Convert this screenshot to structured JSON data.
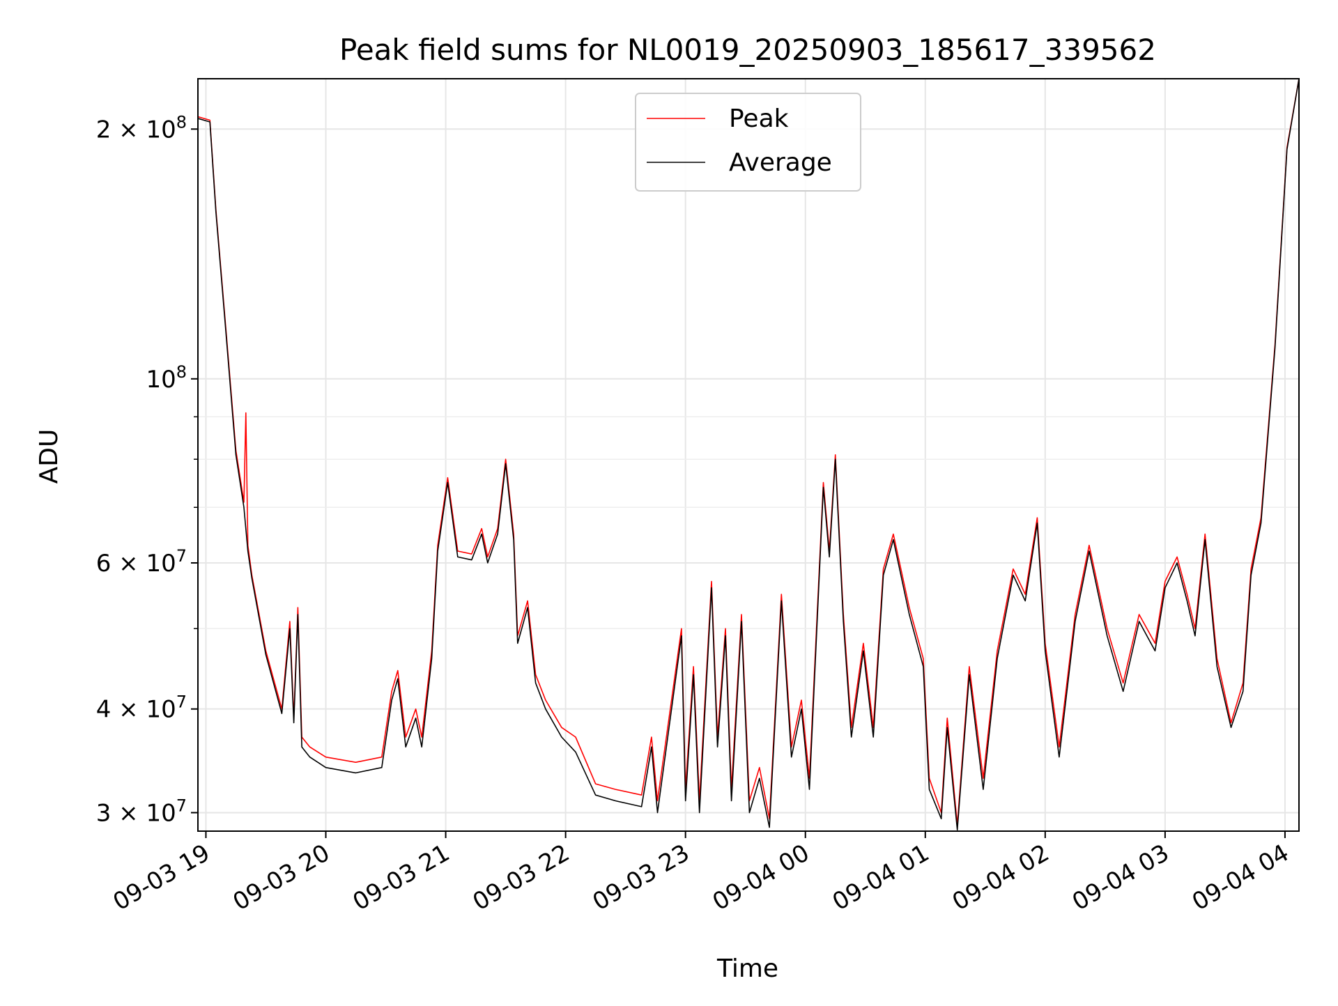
{
  "chart_data": {
    "type": "line",
    "title": "Peak field sums for NL0019_20250903_185617_339562",
    "xlabel": "Time",
    "ylabel": "ADU",
    "yscale": "log",
    "ylim": [
      28500000,
      230000000
    ],
    "xlim": [
      "2025-09-03 18:56",
      "2025-09-04 04:07"
    ],
    "grid": true,
    "legend_position": "top-center",
    "x_ticks": [
      {
        "t": "2025-09-03 19:00",
        "label": "09-03 19"
      },
      {
        "t": "2025-09-03 20:00",
        "label": "09-03 20"
      },
      {
        "t": "2025-09-03 21:00",
        "label": "09-03 21"
      },
      {
        "t": "2025-09-03 22:00",
        "label": "09-03 22"
      },
      {
        "t": "2025-09-03 23:00",
        "label": "09-03 23"
      },
      {
        "t": "2025-09-04 00:00",
        "label": "09-04 00"
      },
      {
        "t": "2025-09-04 01:00",
        "label": "09-04 01"
      },
      {
        "t": "2025-09-04 02:00",
        "label": "09-04 02"
      },
      {
        "t": "2025-09-04 03:00",
        "label": "09-04 03"
      },
      {
        "t": "2025-09-04 04:00",
        "label": "09-04 04"
      }
    ],
    "y_ticks": [
      {
        "value": 30000000,
        "mant": "3",
        "exp": "7"
      },
      {
        "value": 40000000,
        "mant": "4",
        "exp": "7"
      },
      {
        "value": 60000000,
        "mant": "6",
        "exp": "7"
      },
      {
        "value": 100000000,
        "mant": "",
        "exp": "8"
      },
      {
        "value": 200000000,
        "mant": "2",
        "exp": "8"
      }
    ],
    "y_minor": [
      50000000,
      70000000,
      80000000,
      90000000
    ],
    "series": [
      {
        "name": "Peak",
        "color": "#ff0000",
        "points": [
          [
            "2025-09-03 18:56",
            207000000
          ],
          [
            "2025-09-03 19:02",
            205000000
          ],
          [
            "2025-09-03 19:05",
            160000000
          ],
          [
            "2025-09-03 19:10",
            115000000
          ],
          [
            "2025-09-03 19:15",
            82000000
          ],
          [
            "2025-09-03 19:19",
            71000000
          ],
          [
            "2025-09-03 19:20",
            91000000
          ],
          [
            "2025-09-03 19:21",
            63000000
          ],
          [
            "2025-09-03 19:23",
            58000000
          ],
          [
            "2025-09-03 19:30",
            47000000
          ],
          [
            "2025-09-03 19:38",
            40000000
          ],
          [
            "2025-09-03 19:42",
            51000000
          ],
          [
            "2025-09-03 19:44",
            39000000
          ],
          [
            "2025-09-03 19:46",
            53000000
          ],
          [
            "2025-09-03 19:48",
            37000000
          ],
          [
            "2025-09-03 19:52",
            36000000
          ],
          [
            "2025-09-03 20:00",
            35000000
          ],
          [
            "2025-09-03 20:15",
            34500000
          ],
          [
            "2025-09-03 20:28",
            35000000
          ],
          [
            "2025-09-03 20:33",
            42000000
          ],
          [
            "2025-09-03 20:36",
            44500000
          ],
          [
            "2025-09-03 20:40",
            37000000
          ],
          [
            "2025-09-03 20:45",
            40000000
          ],
          [
            "2025-09-03 20:48",
            37000000
          ],
          [
            "2025-09-03 20:53",
            47000000
          ],
          [
            "2025-09-03 20:56",
            63000000
          ],
          [
            "2025-09-03 21:01",
            76000000
          ],
          [
            "2025-09-03 21:06",
            62000000
          ],
          [
            "2025-09-03 21:13",
            61500000
          ],
          [
            "2025-09-03 21:18",
            66000000
          ],
          [
            "2025-09-03 21:21",
            61000000
          ],
          [
            "2025-09-03 21:26",
            66000000
          ],
          [
            "2025-09-03 21:30",
            80000000
          ],
          [
            "2025-09-03 21:34",
            65000000
          ],
          [
            "2025-09-03 21:36",
            49000000
          ],
          [
            "2025-09-03 21:41",
            54000000
          ],
          [
            "2025-09-03 21:45",
            44000000
          ],
          [
            "2025-09-03 21:50",
            41000000
          ],
          [
            "2025-09-03 21:58",
            38000000
          ],
          [
            "2025-09-03 22:05",
            37000000
          ],
          [
            "2025-09-03 22:15",
            32500000
          ],
          [
            "2025-09-03 22:25",
            32000000
          ],
          [
            "2025-09-03 22:38",
            31500000
          ],
          [
            "2025-09-03 22:43",
            37000000
          ],
          [
            "2025-09-03 22:46",
            31000000
          ],
          [
            "2025-09-03 22:58",
            50000000
          ],
          [
            "2025-09-03 23:00",
            32000000
          ],
          [
            "2025-09-03 23:04",
            45000000
          ],
          [
            "2025-09-03 23:07",
            31000000
          ],
          [
            "2025-09-03 23:13",
            57000000
          ],
          [
            "2025-09-03 23:16",
            37000000
          ],
          [
            "2025-09-03 23:20",
            50000000
          ],
          [
            "2025-09-03 23:23",
            32000000
          ],
          [
            "2025-09-03 23:28",
            52000000
          ],
          [
            "2025-09-03 23:32",
            31000000
          ],
          [
            "2025-09-03 23:37",
            34000000
          ],
          [
            "2025-09-03 23:42",
            29500000
          ],
          [
            "2025-09-03 23:48",
            55000000
          ],
          [
            "2025-09-03 23:53",
            36000000
          ],
          [
            "2025-09-03 23:58",
            41000000
          ],
          [
            "2025-09-04 00:02",
            33000000
          ],
          [
            "2025-09-04 00:09",
            75000000
          ],
          [
            "2025-09-04 00:12",
            62000000
          ],
          [
            "2025-09-04 00:15",
            81000000
          ],
          [
            "2025-09-04 00:19",
            52000000
          ],
          [
            "2025-09-04 00:23",
            38000000
          ],
          [
            "2025-09-04 00:29",
            48000000
          ],
          [
            "2025-09-04 00:34",
            38000000
          ],
          [
            "2025-09-04 00:39",
            59000000
          ],
          [
            "2025-09-04 00:44",
            65000000
          ],
          [
            "2025-09-04 00:52",
            53000000
          ],
          [
            "2025-09-04 00:59",
            46000000
          ],
          [
            "2025-09-04 01:02",
            33000000
          ],
          [
            "2025-09-04 01:08",
            30000000
          ],
          [
            "2025-09-04 01:11",
            39000000
          ],
          [
            "2025-09-04 01:16",
            29000000
          ],
          [
            "2025-09-04 01:22",
            45000000
          ],
          [
            "2025-09-04 01:29",
            33000000
          ],
          [
            "2025-09-04 01:36",
            47000000
          ],
          [
            "2025-09-04 01:44",
            59000000
          ],
          [
            "2025-09-04 01:50",
            55000000
          ],
          [
            "2025-09-04 01:56",
            68000000
          ],
          [
            "2025-09-04 02:00",
            48000000
          ],
          [
            "2025-09-04 02:07",
            36000000
          ],
          [
            "2025-09-04 02:15",
            52000000
          ],
          [
            "2025-09-04 02:22",
            63000000
          ],
          [
            "2025-09-04 02:31",
            50000000
          ],
          [
            "2025-09-04 02:39",
            43000000
          ],
          [
            "2025-09-04 02:47",
            52000000
          ],
          [
            "2025-09-04 02:55",
            48000000
          ],
          [
            "2025-09-04 03:00",
            57000000
          ],
          [
            "2025-09-04 03:06",
            61000000
          ],
          [
            "2025-09-04 03:11",
            55000000
          ],
          [
            "2025-09-04 03:15",
            50000000
          ],
          [
            "2025-09-04 03:20",
            65000000
          ],
          [
            "2025-09-04 03:26",
            46000000
          ],
          [
            "2025-09-04 03:33",
            38500000
          ],
          [
            "2025-09-04 03:39",
            43000000
          ],
          [
            "2025-09-04 03:43",
            59000000
          ],
          [
            "2025-09-04 03:48",
            68000000
          ],
          [
            "2025-09-04 03:55",
            110000000
          ],
          [
            "2025-09-04 04:01",
            190000000
          ],
          [
            "2025-09-04 04:07",
            230000000
          ]
        ]
      },
      {
        "name": "Average",
        "color": "#000000",
        "points": [
          [
            "2025-09-03 18:56",
            206000000
          ],
          [
            "2025-09-03 19:02",
            204000000
          ],
          [
            "2025-09-03 19:05",
            159000000
          ],
          [
            "2025-09-03 19:10",
            114000000
          ],
          [
            "2025-09-03 19:15",
            81000000
          ],
          [
            "2025-09-03 19:19",
            70000000
          ],
          [
            "2025-09-03 19:21",
            62000000
          ],
          [
            "2025-09-03 19:23",
            57500000
          ],
          [
            "2025-09-03 19:30",
            46500000
          ],
          [
            "2025-09-03 19:38",
            39500000
          ],
          [
            "2025-09-03 19:42",
            50000000
          ],
          [
            "2025-09-03 19:44",
            38500000
          ],
          [
            "2025-09-03 19:46",
            52000000
          ],
          [
            "2025-09-03 19:48",
            36000000
          ],
          [
            "2025-09-03 19:52",
            35000000
          ],
          [
            "2025-09-03 20:00",
            34000000
          ],
          [
            "2025-09-03 20:15",
            33500000
          ],
          [
            "2025-09-03 20:28",
            34000000
          ],
          [
            "2025-09-03 20:33",
            41000000
          ],
          [
            "2025-09-03 20:36",
            43500000
          ],
          [
            "2025-09-03 20:40",
            36000000
          ],
          [
            "2025-09-03 20:45",
            39000000
          ],
          [
            "2025-09-03 20:48",
            36000000
          ],
          [
            "2025-09-03 20:53",
            46000000
          ],
          [
            "2025-09-03 20:56",
            62000000
          ],
          [
            "2025-09-03 21:01",
            75000000
          ],
          [
            "2025-09-03 21:06",
            61000000
          ],
          [
            "2025-09-03 21:13",
            60500000
          ],
          [
            "2025-09-03 21:18",
            65000000
          ],
          [
            "2025-09-03 21:21",
            60000000
          ],
          [
            "2025-09-03 21:26",
            65000000
          ],
          [
            "2025-09-03 21:30",
            79000000
          ],
          [
            "2025-09-03 21:34",
            64000000
          ],
          [
            "2025-09-03 21:36",
            48000000
          ],
          [
            "2025-09-03 21:41",
            53000000
          ],
          [
            "2025-09-03 21:45",
            43000000
          ],
          [
            "2025-09-03 21:50",
            40000000
          ],
          [
            "2025-09-03 21:58",
            37000000
          ],
          [
            "2025-09-03 22:05",
            35500000
          ],
          [
            "2025-09-03 22:15",
            31500000
          ],
          [
            "2025-09-03 22:25",
            31000000
          ],
          [
            "2025-09-03 22:38",
            30500000
          ],
          [
            "2025-09-03 22:43",
            36000000
          ],
          [
            "2025-09-03 22:46",
            30000000
          ],
          [
            "2025-09-03 22:58",
            49000000
          ],
          [
            "2025-09-03 23:00",
            31000000
          ],
          [
            "2025-09-03 23:04",
            44000000
          ],
          [
            "2025-09-03 23:07",
            30000000
          ],
          [
            "2025-09-03 23:13",
            56000000
          ],
          [
            "2025-09-03 23:16",
            36000000
          ],
          [
            "2025-09-03 23:20",
            49000000
          ],
          [
            "2025-09-03 23:23",
            31000000
          ],
          [
            "2025-09-03 23:28",
            51000000
          ],
          [
            "2025-09-03 23:32",
            30000000
          ],
          [
            "2025-09-03 23:37",
            33000000
          ],
          [
            "2025-09-03 23:42",
            28800000
          ],
          [
            "2025-09-03 23:48",
            54000000
          ],
          [
            "2025-09-03 23:53",
            35000000
          ],
          [
            "2025-09-03 23:58",
            40000000
          ],
          [
            "2025-09-04 00:02",
            32000000
          ],
          [
            "2025-09-04 00:09",
            74000000
          ],
          [
            "2025-09-04 00:12",
            61000000
          ],
          [
            "2025-09-04 00:15",
            80000000
          ],
          [
            "2025-09-04 00:19",
            51000000
          ],
          [
            "2025-09-04 00:23",
            37000000
          ],
          [
            "2025-09-04 00:29",
            47000000
          ],
          [
            "2025-09-04 00:34",
            37000000
          ],
          [
            "2025-09-04 00:39",
            58000000
          ],
          [
            "2025-09-04 00:44",
            64000000
          ],
          [
            "2025-09-04 00:52",
            52000000
          ],
          [
            "2025-09-04 00:59",
            45000000
          ],
          [
            "2025-09-04 01:02",
            32000000
          ],
          [
            "2025-09-04 01:08",
            29500000
          ],
          [
            "2025-09-04 01:11",
            38000000
          ],
          [
            "2025-09-04 01:16",
            28600000
          ],
          [
            "2025-09-04 01:22",
            44000000
          ],
          [
            "2025-09-04 01:29",
            32000000
          ],
          [
            "2025-09-04 01:36",
            46000000
          ],
          [
            "2025-09-04 01:44",
            58000000
          ],
          [
            "2025-09-04 01:50",
            54000000
          ],
          [
            "2025-09-04 01:56",
            67000000
          ],
          [
            "2025-09-04 02:00",
            47000000
          ],
          [
            "2025-09-04 02:07",
            35000000
          ],
          [
            "2025-09-04 02:15",
            51000000
          ],
          [
            "2025-09-04 02:22",
            62000000
          ],
          [
            "2025-09-04 02:31",
            49000000
          ],
          [
            "2025-09-04 02:39",
            42000000
          ],
          [
            "2025-09-04 02:47",
            51000000
          ],
          [
            "2025-09-04 02:55",
            47000000
          ],
          [
            "2025-09-04 03:00",
            56000000
          ],
          [
            "2025-09-04 03:06",
            60000000
          ],
          [
            "2025-09-04 03:11",
            54000000
          ],
          [
            "2025-09-04 03:15",
            49000000
          ],
          [
            "2025-09-04 03:20",
            64000000
          ],
          [
            "2025-09-04 03:26",
            45000000
          ],
          [
            "2025-09-04 03:33",
            38000000
          ],
          [
            "2025-09-04 03:39",
            42000000
          ],
          [
            "2025-09-04 03:43",
            58000000
          ],
          [
            "2025-09-04 03:48",
            67000000
          ],
          [
            "2025-09-04 03:55",
            109000000
          ],
          [
            "2025-09-04 04:01",
            189000000
          ],
          [
            "2025-09-04 04:07",
            230000000
          ]
        ]
      }
    ]
  }
}
